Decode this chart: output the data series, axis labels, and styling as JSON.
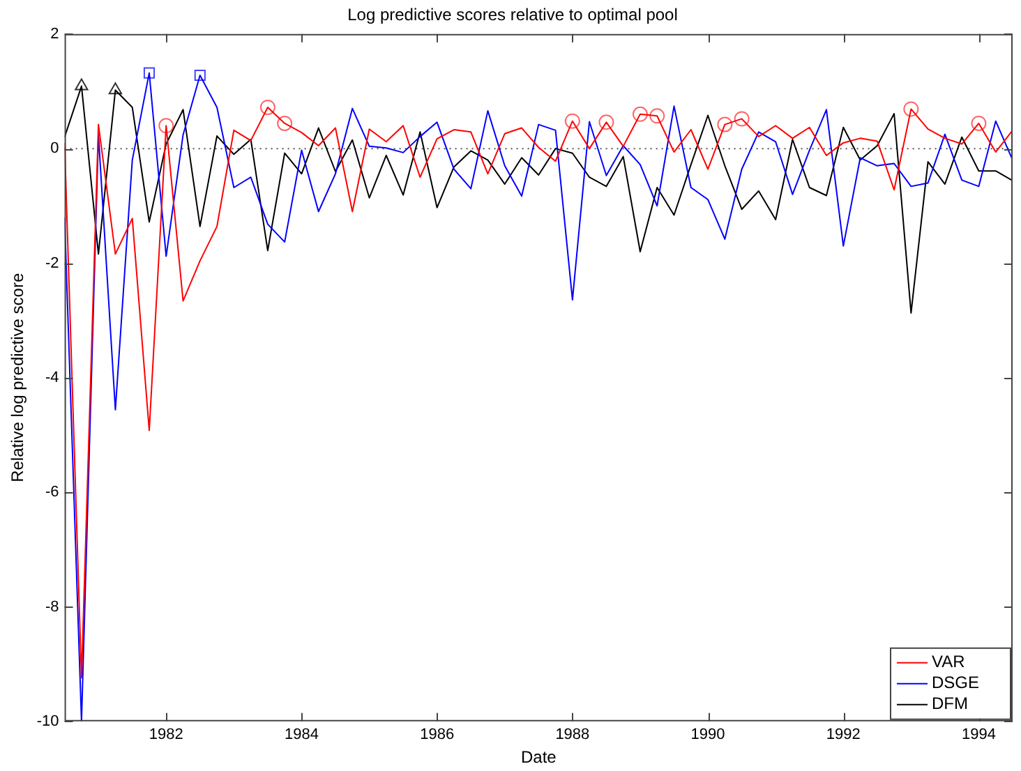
{
  "chart_data": {
    "type": "line",
    "title": "Log predictive scores relative to optimal pool",
    "xlabel": "Date",
    "ylabel": "Relative log predictive score",
    "x": [
      1980.5,
      1980.75,
      1981,
      1981.25,
      1981.5,
      1981.75,
      1982,
      1982.25,
      1982.5,
      1982.75,
      1983,
      1983.25,
      1983.5,
      1983.75,
      1984,
      1984.25,
      1984.5,
      1984.75,
      1985,
      1985.25,
      1985.5,
      1985.75,
      1986,
      1986.25,
      1986.5,
      1986.75,
      1987,
      1987.25,
      1987.5,
      1987.75,
      1988,
      1988.25,
      1988.5,
      1988.75,
      1989,
      1989.25,
      1989.5,
      1989.75,
      1990,
      1990.25,
      1990.5,
      1990.75,
      1991,
      1991.25,
      1991.5,
      1991.75,
      1992,
      1992.25,
      1992.5,
      1992.75,
      1993,
      1993.25,
      1993.5,
      1993.75,
      1994,
      1994.25,
      1994.5
    ],
    "series": [
      {
        "name": "VAR",
        "color": "#ff0000",
        "values": [
          0.1,
          -9.24,
          0.42,
          -1.84,
          -1.22,
          -4.92,
          0.4,
          -2.66,
          -1.96,
          -1.36,
          0.32,
          0.14,
          0.72,
          0.44,
          0.28,
          0.05,
          0.36,
          -1.1,
          0.34,
          0.12,
          0.4,
          -0.5,
          0.17,
          0.33,
          0.29,
          -0.44,
          0.26,
          0.36,
          0.02,
          -0.22,
          0.48,
          0,
          0.46,
          0.04,
          0.6,
          0.57,
          -0.06,
          0.33,
          -0.36,
          0.42,
          0.52,
          0.21,
          0.4,
          0.18,
          0.37,
          -0.12,
          0.1,
          0.18,
          0.13,
          -0.72,
          0.69,
          0.34,
          0.18,
          0.08,
          0.44,
          -0.06,
          0.32
        ]
      },
      {
        "name": "DSGE",
        "color": "#0000ff",
        "values": [
          -1.2,
          -10,
          0.24,
          -4.56,
          -0.2,
          1.32,
          -1.88,
          0.24,
          1.28,
          0.72,
          -0.68,
          -0.5,
          -1.32,
          -1.63,
          -0.03,
          -1.1,
          -0.44,
          0.7,
          0.04,
          0.01,
          -0.07,
          0.21,
          0.46,
          -0.36,
          -0.7,
          0.66,
          -0.3,
          -0.83,
          0.42,
          0.32,
          -2.64,
          0.47,
          -0.47,
          0.05,
          -0.28,
          -1.0,
          0.74,
          -0.68,
          -0.89,
          -1.58,
          -0.36,
          0.29,
          0.12,
          -0.8,
          -0.03,
          0.68,
          -1.7,
          -0.16,
          -0.3,
          -0.26,
          -0.66,
          -0.6,
          0.25,
          -0.55,
          -0.66,
          0.48,
          -0.2
        ]
      },
      {
        "name": "DFM",
        "color": "#000000",
        "values": [
          0.2,
          1.09,
          -1.84,
          1.02,
          0.72,
          -1.28,
          0.08,
          0.68,
          -1.36,
          0.22,
          -0.1,
          0.16,
          -1.78,
          -0.08,
          -0.44,
          0.36,
          -0.4,
          0.15,
          -0.86,
          -0.12,
          -0.81,
          0.29,
          -1.03,
          -0.32,
          -0.04,
          -0.2,
          -0.62,
          -0.16,
          -0.46,
          0,
          -0.08,
          -0.5,
          -0.66,
          -0.14,
          -1.8,
          -0.68,
          -1.16,
          -0.28,
          0.58,
          -0.3,
          -1.06,
          -0.74,
          -1.24,
          0.16,
          -0.68,
          -0.82,
          0.37,
          -0.2,
          0.05,
          0.61,
          -2.87,
          -0.23,
          -0.62,
          0.2,
          -0.39,
          -0.39,
          -0.56
        ]
      },
      {
        "type": "scatter",
        "color": "#ff6666",
        "marker": "circle",
        "x": [
          1982,
          1983.5,
          1983.75,
          1988,
          1988.5,
          1989,
          1989.25,
          1990.25,
          1990.5,
          1993,
          1994
        ],
        "values": [
          0.4,
          0.72,
          0.44,
          0.48,
          0.46,
          0.6,
          0.57,
          0.42,
          0.52,
          0.69,
          0.44
        ]
      },
      {
        "type": "scatter",
        "color": "#4444ff",
        "marker": "square",
        "x": [
          1981.75,
          1982.5
        ],
        "values": [
          1.32,
          1.28
        ]
      },
      {
        "type": "scatter",
        "color": "#333333",
        "marker": "triangle",
        "x": [
          1980.75,
          1981.25
        ],
        "values": [
          1.09,
          1.02
        ]
      }
    ],
    "xlim": [
      1980.5,
      1994.5
    ],
    "xticks": [
      1982,
      1984,
      1986,
      1988,
      1990,
      1992,
      1994
    ],
    "ylim": [
      -10,
      2
    ],
    "yticks": [
      -10,
      -8,
      -6,
      -4,
      -2,
      0,
      2
    ],
    "ref_lines": [
      {
        "axis": "y",
        "value": 0,
        "color": "#555555",
        "line_style": "dotted"
      }
    ],
    "grid": false,
    "legend": "bottom right",
    "marker": "none",
    "line_style": "solid"
  }
}
